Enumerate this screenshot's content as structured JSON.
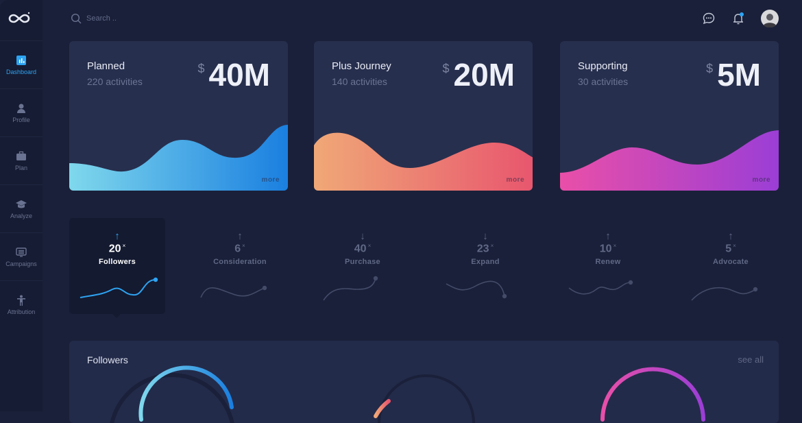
{
  "sidebar": {
    "items": [
      {
        "label": "Dashboard",
        "icon": "bar-chart-icon",
        "active": true
      },
      {
        "label": "Profile",
        "icon": "user-icon"
      },
      {
        "label": "Plan",
        "icon": "briefcase-icon"
      },
      {
        "label": "Analyze",
        "icon": "graduation-cap-icon"
      },
      {
        "label": "Campaigns",
        "icon": "monitor-icon"
      },
      {
        "label": "Attribution",
        "icon": "person-icon"
      }
    ]
  },
  "header": {
    "search_placeholder": "Search ..",
    "notification_dot_color": "#2ea3f2"
  },
  "cards": [
    {
      "title": "Planned",
      "subtitle": "220 activities",
      "currency": "$",
      "amount": "40M",
      "more": "more",
      "gradient": [
        "#7fd8ec",
        "#1a7fe0"
      ]
    },
    {
      "title": "Plus Journey",
      "subtitle": "140 activities",
      "currency": "$",
      "amount": "20M",
      "more": "more",
      "gradient": [
        "#f0a877",
        "#e8566e"
      ]
    },
    {
      "title": "Supporting",
      "subtitle": "30 activities",
      "currency": "$",
      "amount": "5M",
      "more": "more",
      "gradient": [
        "#e94fa8",
        "#9b3ed6"
      ]
    }
  ],
  "metrics": [
    {
      "arrow": "↑",
      "value": "20",
      "unit": "×",
      "label": "Followers",
      "active": true
    },
    {
      "arrow": "↑",
      "value": "6",
      "unit": "×",
      "label": "Consideration"
    },
    {
      "arrow": "↓",
      "value": "40",
      "unit": "×",
      "label": "Purchase"
    },
    {
      "arrow": "↓",
      "value": "23",
      "unit": "×",
      "label": "Expand"
    },
    {
      "arrow": "↑",
      "value": "10",
      "unit": "×",
      "label": "Renew"
    },
    {
      "arrow": "↑",
      "value": "5",
      "unit": "×",
      "label": "Advocate"
    }
  ],
  "followers": {
    "title": "Followers",
    "see_all": "see all"
  }
}
